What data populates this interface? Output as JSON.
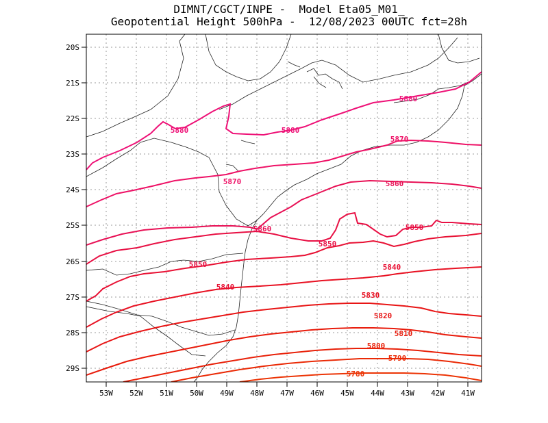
{
  "header": {
    "line1": "DIMNT/CGCT/INPE -  Model Eta05_M01_",
    "line2": "Geopotential Height 500hPa -  12/08/2023 00UTC fct=28h"
  },
  "axes": {
    "lat_labels": [
      "20S",
      "21S",
      "22S",
      "23S",
      "24S",
      "25S",
      "26S",
      "27S",
      "28S",
      "29S"
    ],
    "lon_labels": [
      "53W",
      "52W",
      "51W",
      "50W",
      "49W",
      "48W",
      "47W",
      "46W",
      "45W",
      "44W",
      "43W",
      "42W",
      "41W"
    ]
  },
  "contours": {
    "levels": [
      "5880",
      "5870",
      "5860",
      "5850",
      "5840",
      "5830",
      "5820",
      "5810",
      "5800",
      "5790",
      "5780"
    ],
    "colors": {
      "c5880": "#ee1177",
      "c5870": "#ee1166",
      "c5860": "#e81055",
      "c5850": "#e81044",
      "c5840": "#e81033",
      "c5830": "#e81122",
      "c5820": "#e81515",
      "c5810": "#e81a0a",
      "c5800": "#e82008",
      "c5790": "#ea2a06",
      "c5780": "#ec3405"
    },
    "labels": {
      "l5880a": "5880",
      "l5880b": "5880",
      "l5880c": "5880",
      "l5870a": "5870",
      "l5870b": "5870",
      "l5860a": "5860",
      "l5860b": "5860",
      "l5850a": "5850",
      "l5850b": "5850",
      "l5850c": "5850",
      "l5840a": "5840",
      "l5840b": "5840",
      "l5830": "5830",
      "l5820": "5820",
      "l5810": "5810",
      "l5800": "5800",
      "l5790": "5790",
      "l5780": "5780"
    }
  }
}
